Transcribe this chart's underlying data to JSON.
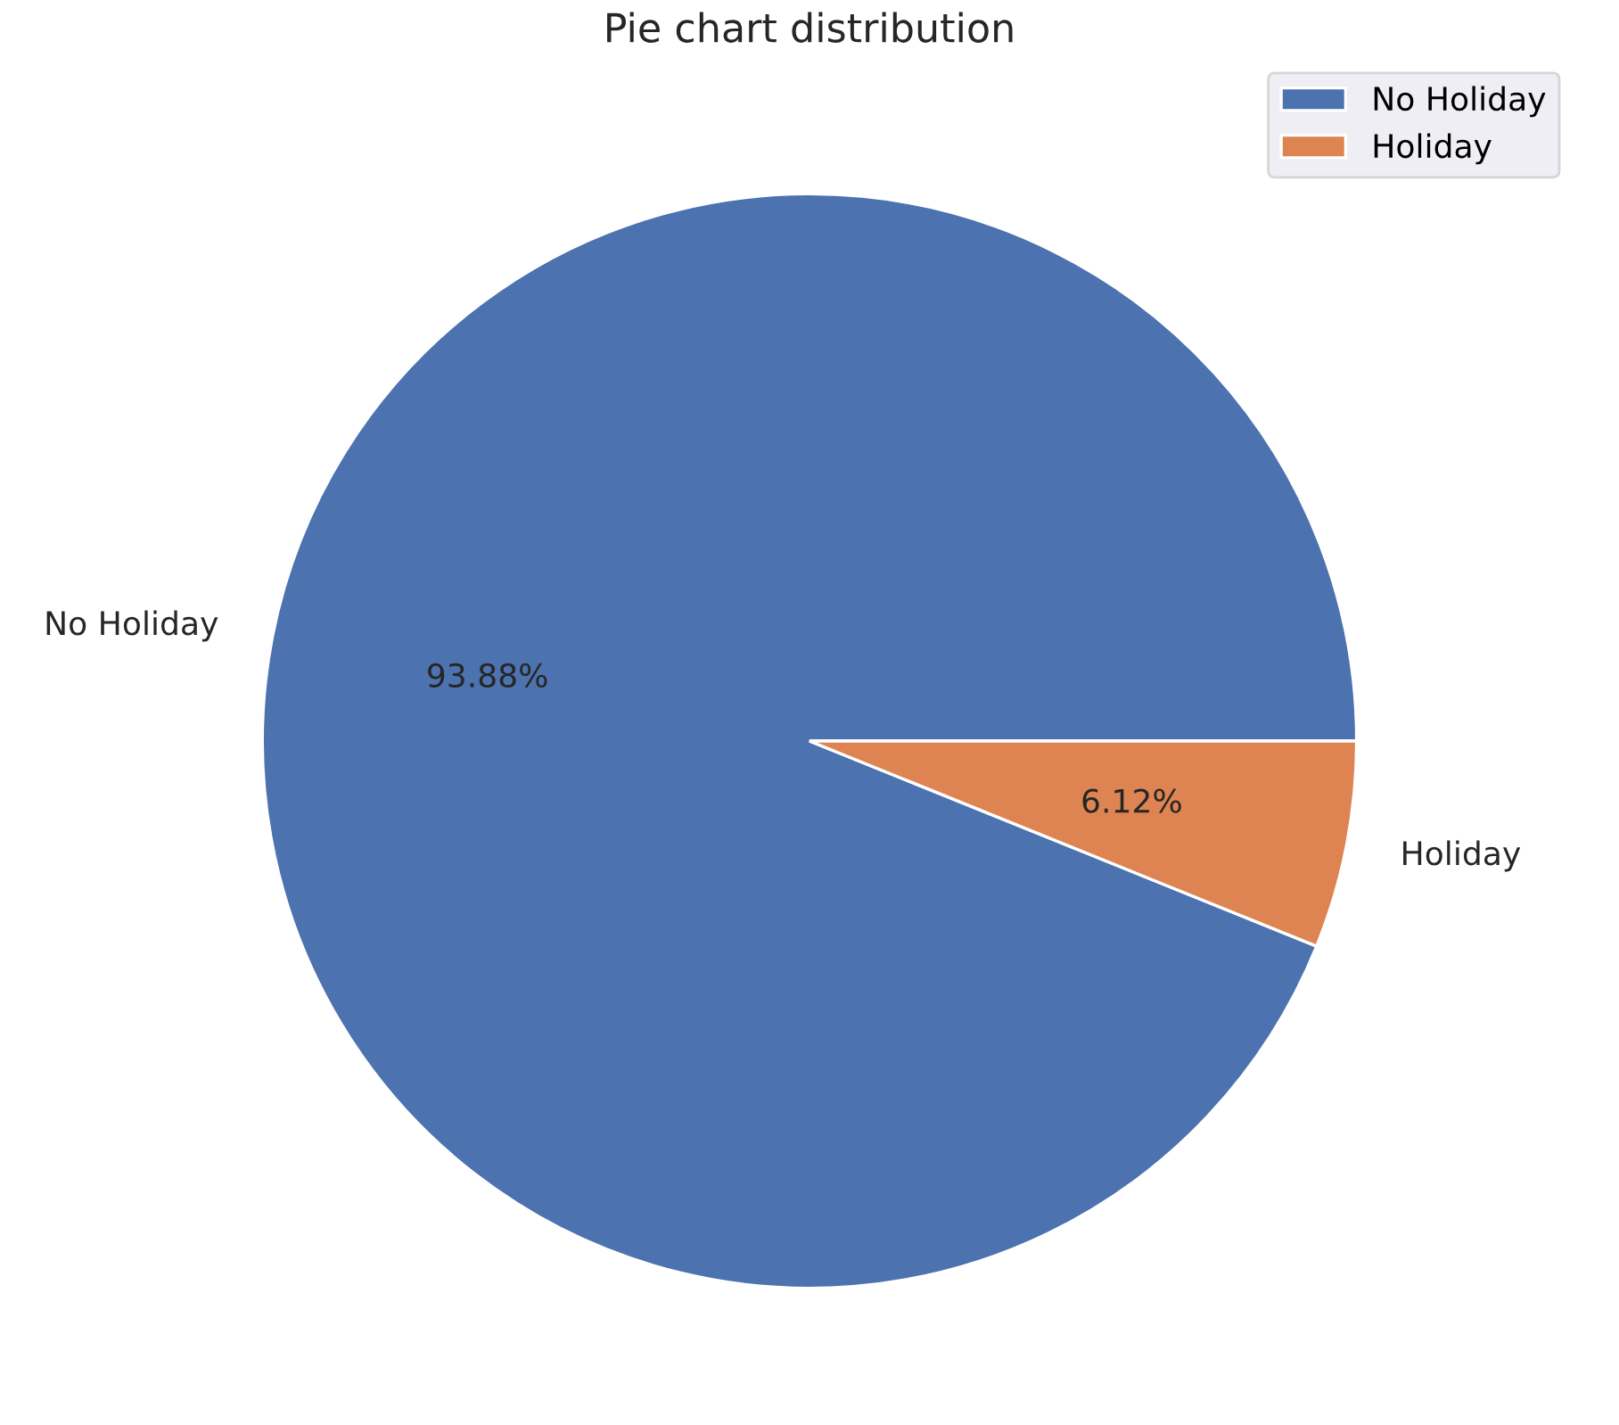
{
  "chart_data": {
    "type": "pie",
    "title": "Pie chart distribution",
    "categories": [
      "No Holiday",
      "Holiday"
    ],
    "values": [
      93.88,
      6.12
    ],
    "value_labels": [
      "93.88%",
      "6.12%"
    ],
    "colors": [
      "#4c72b0",
      "#dd8452"
    ],
    "legend": "top right"
  }
}
